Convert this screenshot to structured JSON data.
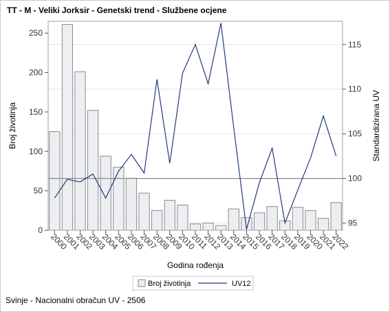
{
  "title": "TT - M - Veliki Jorksir - Genetski trend - Službene ocjene",
  "footnote": "Svinje - Nacionalni obračun UV - 2506",
  "chart_data": {
    "type": "bar+line",
    "categories": [
      "2000",
      "2001",
      "2002",
      "2003",
      "2004",
      "2005",
      "2006",
      "2007",
      "2008",
      "2009",
      "2010",
      "2011",
      "2012",
      "2013",
      "2014",
      "2015",
      "2016",
      "2017",
      "2018",
      "2019",
      "2020",
      "2021",
      "2022"
    ],
    "series": [
      {
        "name": "Broj životinja",
        "type": "bar",
        "axis": "left",
        "values": [
          125,
          261,
          201,
          152,
          94,
          80,
          66,
          47,
          25,
          38,
          32,
          8,
          9,
          6,
          27,
          16,
          22,
          30,
          12,
          29,
          25,
          15,
          35
        ]
      },
      {
        "name": "UV12",
        "type": "line",
        "axis": "right",
        "values": [
          97.8,
          99.9,
          99.6,
          100.5,
          97.8,
          100.8,
          102.7,
          100.6,
          111.1,
          101.7,
          111.8,
          115.0,
          110.6,
          117.4,
          105.7,
          94.3,
          99.5,
          103.4,
          95.0,
          98.7,
          102.3,
          107.0,
          102.5
        ]
      }
    ],
    "xlabel": "Godina rođenja",
    "ylabel_left": "Broj životinja",
    "ylabel_right": "Standardizirana UV",
    "ylim_left": [
      0,
      265
    ],
    "ylim_right": [
      94.2,
      117.6
    ],
    "yticks_left": [
      0,
      50,
      100,
      150,
      200,
      250
    ],
    "yticks_right": [
      95,
      100,
      105,
      110,
      115
    ],
    "reference_line_right": 100,
    "grid": true,
    "legend": {
      "position": "bottom",
      "entries": [
        "Broj životinja",
        "UV12"
      ]
    },
    "colors": {
      "bar_fill": "#eceef2",
      "bar_stroke": "#8a8a8a",
      "line": "#1f3a7a",
      "reference_line": "#8a8a8a",
      "grid": "#e4e4e4"
    }
  }
}
